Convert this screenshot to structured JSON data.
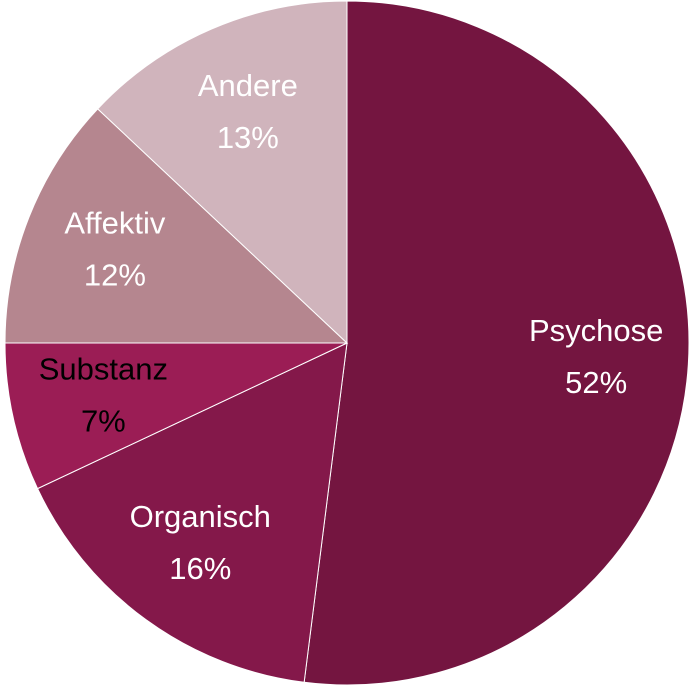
{
  "chart_data": {
    "type": "pie",
    "categories": [
      "Psychose",
      "Organisch",
      "Substanz",
      "Affektiv",
      "Andere"
    ],
    "values": [
      52,
      16,
      7,
      12,
      13
    ],
    "value_labels": [
      "52%",
      "16%",
      "7%",
      "12%",
      "13%"
    ],
    "colors": [
      "#741540",
      "#84184a",
      "#9b1d55",
      "#b5868f",
      "#d0b4bc"
    ],
    "label_colors": [
      "#ffffff",
      "#ffffff",
      "#000000",
      "#ffffff",
      "#ffffff"
    ]
  }
}
